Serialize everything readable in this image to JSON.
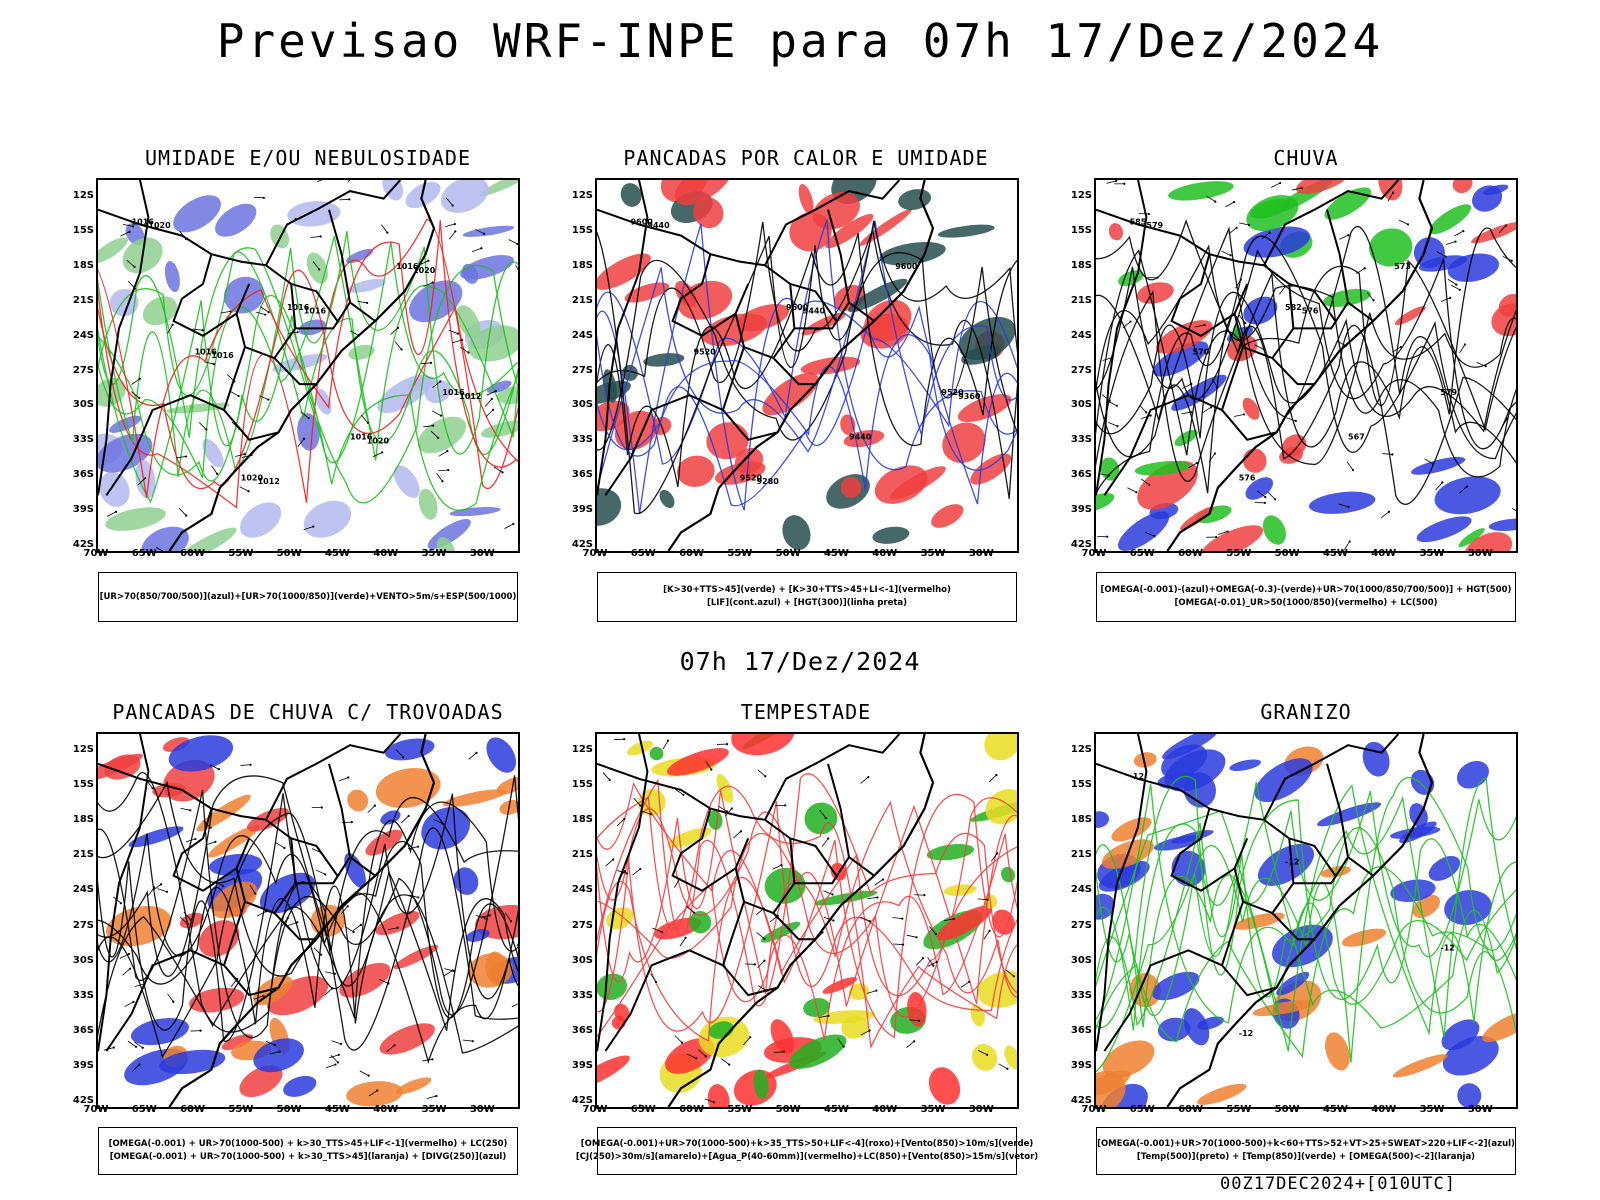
{
  "title": "Previsao WRF-INPE  para 07h 17/Dez/2024",
  "mid_time": "07h 17/Dez/2024",
  "footer": "00Z17DEC2024+[010UTC]",
  "axes": {
    "lat_labels": [
      "12S",
      "15S",
      "18S",
      "21S",
      "24S",
      "27S",
      "30S",
      "33S",
      "36S",
      "39S",
      "42S"
    ],
    "lon_labels": [
      "70W",
      "65W",
      "60W",
      "55W",
      "50W",
      "45W",
      "40W",
      "35W",
      "30W"
    ]
  },
  "panels": [
    {
      "title": "UMIDADE E/OU NEBULOSIDADE",
      "legend": [
        "[UR>70(850/700/500)](azul)+[UR>70(1000/850)](verde)+VENTO>5m/s+ESP(500/1000)"
      ],
      "contour_labels": [
        "1016",
        "1016",
        "1016",
        "1020",
        "1016",
        "1016",
        "1016",
        "1020",
        "1016",
        "1012",
        "1012",
        "1020",
        "1016",
        "1020"
      ]
    },
    {
      "title": "PANCADAS POR CALOR E UMIDADE",
      "legend": [
        "[K>30+TTS>45](verde) + [K>30+TTS>45+LI<-1](vermelho)",
        "[LIF](cont.azul) + [HGT(300)](linha preta)"
      ],
      "contour_labels": [
        "9600",
        "9600",
        "9520",
        "9520",
        "9600",
        "9520",
        "9440",
        "9440",
        "9440",
        "9360",
        "9280"
      ]
    },
    {
      "title": "CHUVA",
      "legend": [
        "[OMEGA(-0.001)-(azul)+OMEGA(-0.3)-(verde)+UR>70(1000/850/700/500)] + HGT(500)",
        "[OMEGA(-0.01)_UR>50(1000/850)(vermelho) + LC(500)"
      ],
      "contour_labels": [
        "585",
        "582",
        "579",
        "576",
        "573",
        "570",
        "567",
        "579",
        "576"
      ]
    },
    {
      "title": "PANCADAS DE CHUVA C/ TROVOADAS",
      "legend": [
        "[OMEGA(-0.001) + UR>70(1000-500) + k>30_TTS>45+LIF<-1](vermelho) + LC(250)",
        "[OMEGA(-0.001) + UR>70(1000-500) + k>30_TTS>45](laranja) + [DIVG(250)](azul)"
      ],
      "contour_labels": []
    },
    {
      "title": "TEMPESTADE",
      "legend": [
        "[OMEGA(-0.001)+UR>70(1000-500)+k>35_TTS>50+LIF<-4](roxo)+[Vento(850)>10m/s](verde)",
        "[CJ(250)>30m/s](amarelo)+[Agua_P(40-60mm)](vermelho)+LC(850)+[Vento(850)>15m/s](vetor)"
      ],
      "contour_labels": []
    },
    {
      "title": "GRANIZO",
      "legend": [
        "[OMEGA(-0.001)+UR>70(1000-500)+k<60+TTS>52+VT>25+SWEAT>220+LIF<-2](azul)",
        "[Temp(500)](preto) + [Temp(850)](verde) + [OMEGA(500)<-2](laranja)"
      ],
      "contour_labels": [
        "-12",
        "-12",
        "-12",
        "-12"
      ]
    }
  ]
}
